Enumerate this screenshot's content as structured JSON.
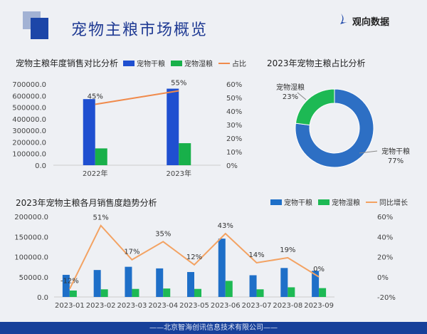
{
  "header": {
    "title": "宠物主粮市场概览",
    "brand": "观向数据"
  },
  "footer": {
    "text": "——北京智海创讯信息技术有限公司——"
  },
  "colors": {
    "dry_annual": "#1f4fd0",
    "wet_annual": "#18b04a",
    "line_annual": "#f08a4b",
    "dry_monthly": "#1e6fc8",
    "wet_monthly": "#1db954",
    "line_monthly": "#f3a262",
    "pie_dry": "#2d6fc4",
    "pie_wet": "#1db954"
  },
  "chart_data": [
    {
      "type": "bar",
      "title": "宠物主粮年度销售对比分析",
      "categories": [
        "2022年",
        "2023年"
      ],
      "series": [
        {
          "name": "宠物干粮",
          "values": [
            570000,
            660000
          ],
          "axis": "left"
        },
        {
          "name": "宠物湿粮",
          "values": [
            145000,
            190000
          ],
          "axis": "left"
        },
        {
          "name": "占比",
          "type": "line",
          "values": [
            45,
            55
          ],
          "labels": [
            "45%",
            "55%"
          ],
          "axis": "right"
        }
      ],
      "ylim": [
        0,
        700000
      ],
      "yticks": [
        "0.0",
        "100000.0",
        "200000.0",
        "300000.0",
        "400000.0",
        "500000.0",
        "600000.0",
        "700000.0"
      ],
      "y2lim": [
        0,
        60
      ],
      "y2ticks": [
        "0%",
        "10%",
        "20%",
        "30%",
        "40%",
        "50%",
        "60%"
      ],
      "legend": "top-right",
      "grid": false
    },
    {
      "type": "pie",
      "title": "2023年宠物主粮占比分析",
      "donut": true,
      "slices": [
        {
          "name": "宠物干粮",
          "value": 77,
          "label": "77%"
        },
        {
          "name": "宠物湿粮",
          "value": 23,
          "label": "23%"
        }
      ]
    },
    {
      "type": "bar",
      "title": "2023年宠物主粮各月销售度趋势分析",
      "categories": [
        "2023-01",
        "2023-02",
        "2023-03",
        "2023-04",
        "2023-05",
        "2023-06",
        "2023-07",
        "2023-08",
        "2023-09"
      ],
      "series": [
        {
          "name": "宠物干粮",
          "values": [
            55000,
            67000,
            75000,
            71000,
            62000,
            145000,
            54000,
            72000,
            65000
          ],
          "axis": "left"
        },
        {
          "name": "宠物湿粮",
          "values": [
            16000,
            19000,
            20000,
            21000,
            20000,
            40000,
            19000,
            24000,
            22000
          ],
          "axis": "left"
        },
        {
          "name": "同比增长",
          "type": "line",
          "values": [
            -12,
            51,
            17,
            35,
            12,
            43,
            14,
            19,
            0
          ],
          "labels": [
            "-12%",
            "51%",
            "17%",
            "35%",
            "12%",
            "43%",
            "14%",
            "19%",
            "0%"
          ],
          "axis": "right"
        }
      ],
      "ylim": [
        0,
        200000
      ],
      "yticks": [
        "0.0",
        "50000.0",
        "100000.0",
        "150000.0",
        "200000.0"
      ],
      "y2lim": [
        -20,
        60
      ],
      "y2ticks": [
        "-20%",
        "0%",
        "20%",
        "40%",
        "60%"
      ],
      "legend": "top-right",
      "grid": false
    }
  ]
}
